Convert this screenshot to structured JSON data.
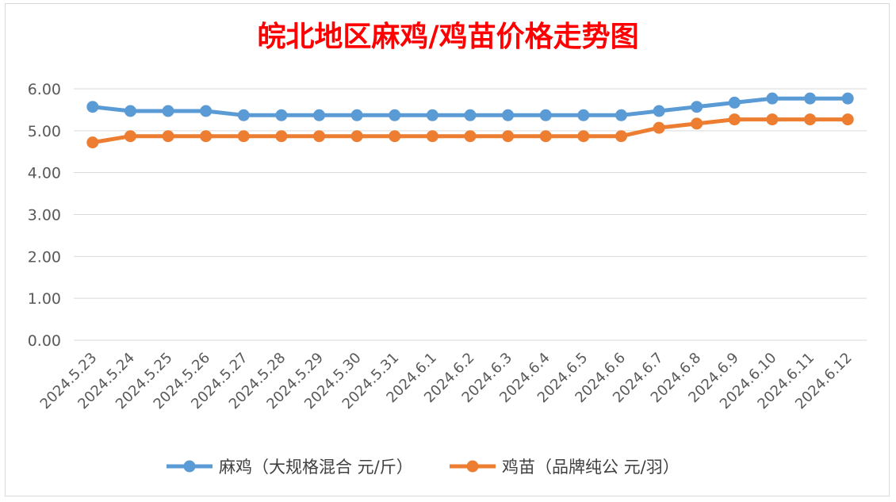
{
  "chart_data": {
    "type": "line",
    "title": "皖北地区麻鸡/鸡苗价格走势图",
    "xlabel": "",
    "ylabel": "",
    "categories": [
      "2024.5.23",
      "2024.5.24",
      "2024.5.25",
      "2024.5.26",
      "2024.5.27",
      "2024.5.28",
      "2024.5.29",
      "2024.5.30",
      "2024.5.31",
      "2024.6.1",
      "2024.6.2",
      "2024.6.3",
      "2024.6.4",
      "2024.6.5",
      "2024.6.6",
      "2024.6.7",
      "2024.6.8",
      "2024.6.9",
      "2024.6.10",
      "2024.6.11",
      "2024.6.12"
    ],
    "yticks": [
      "0.00",
      "1.00",
      "2.00",
      "3.00",
      "4.00",
      "5.00",
      "6.00"
    ],
    "ylim": [
      0,
      6
    ],
    "grid": true,
    "legend_position": "bottom",
    "series": [
      {
        "name": "麻鸡（大规格混合 元/斤）",
        "color": "#5b9bd5",
        "values": [
          5.57,
          5.47,
          5.47,
          5.47,
          5.37,
          5.37,
          5.37,
          5.37,
          5.37,
          5.37,
          5.37,
          5.37,
          5.37,
          5.37,
          5.37,
          5.47,
          5.57,
          5.67,
          5.77,
          5.77,
          5.77
        ]
      },
      {
        "name": "鸡苗（品牌纯公 元/羽）",
        "color": "#ed7d31",
        "values": [
          4.72,
          4.87,
          4.87,
          4.87,
          4.87,
          4.87,
          4.87,
          4.87,
          4.87,
          4.87,
          4.87,
          4.87,
          4.87,
          4.87,
          4.87,
          5.07,
          5.17,
          5.27,
          5.27,
          5.27,
          5.27
        ]
      }
    ]
  }
}
